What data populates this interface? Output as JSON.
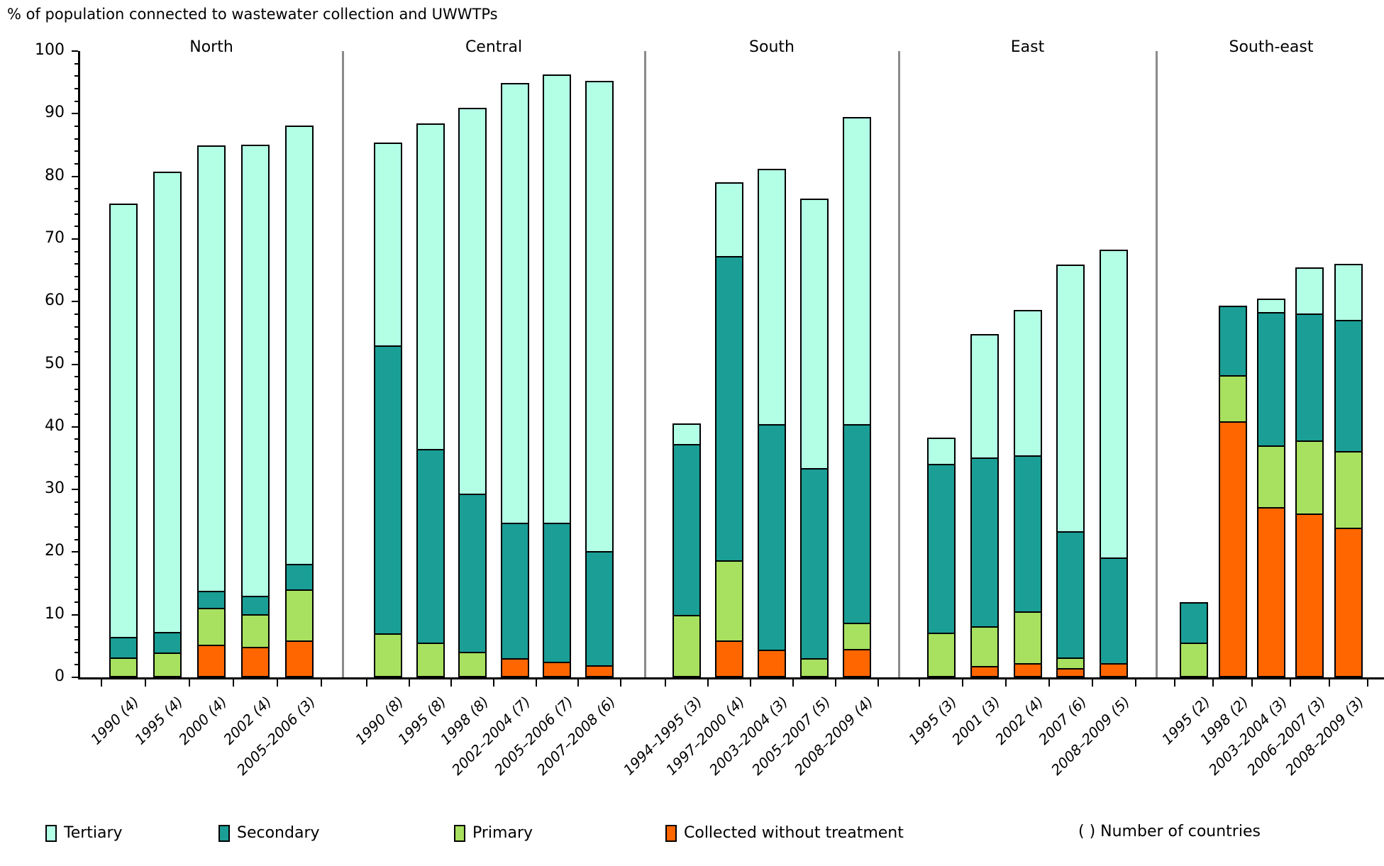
{
  "chart_data": {
    "type": "bar",
    "subtype": "stacked-vertical-grouped",
    "title": "% of population connected to wastewater collection and UWWTPs",
    "ylabel": "",
    "xlabel": "",
    "ylim": [
      0,
      100
    ],
    "y_major_step": 10,
    "y_minor_step": 2,
    "grid": false,
    "legend_position": "bottom",
    "note": "( ) Number of countries",
    "stack_order": [
      "collected",
      "primary",
      "secondary",
      "tertiary"
    ],
    "series_colors": {
      "tertiary": "#b2ffe6",
      "secondary": "#1a9e96",
      "primary": "#a8e05f",
      "collected": "#ff6600"
    },
    "legend": [
      {
        "key": "tertiary",
        "label": "Tertiary",
        "color": "#b2ffe6"
      },
      {
        "key": "secondary",
        "label": "Secondary",
        "color": "#1a9e96"
      },
      {
        "key": "primary",
        "label": "Primary",
        "color": "#a8e05f"
      },
      {
        "key": "collected",
        "label": "Collected without treatment",
        "color": "#ff6600"
      }
    ],
    "groups": [
      {
        "name": "North",
        "bars": [
          {
            "label": "1990 (4)",
            "collected": 0,
            "primary": 2.8,
            "secondary": 3.0,
            "tertiary": 69.8,
            "total": 75.6
          },
          {
            "label": "1995 (4)",
            "collected": 0,
            "primary": 3.5,
            "secondary": 3.2,
            "tertiary": 74.1,
            "total": 80.8
          },
          {
            "label": "2000 (4)",
            "collected": 4.8,
            "primary": 5.8,
            "secondary": 2.5,
            "tertiary": 71.8,
            "total": 84.9
          },
          {
            "label": "2002 (4)",
            "collected": 4.5,
            "primary": 5.0,
            "secondary": 2.8,
            "tertiary": 72.8,
            "total": 85.1
          },
          {
            "label": "2005–2006 (3)",
            "collected": 5.5,
            "primary": 8.0,
            "secondary": 3.9,
            "tertiary": 70.7,
            "total": 88.1
          }
        ]
      },
      {
        "name": "Central",
        "bars": [
          {
            "label": "1990 (8)",
            "collected": 0,
            "primary": 6.6,
            "secondary": 46.3,
            "tertiary": 32.5,
            "total": 85.4
          },
          {
            "label": "1995 (8)",
            "collected": 0,
            "primary": 5.1,
            "secondary": 31.1,
            "tertiary": 52.2,
            "total": 88.4
          },
          {
            "label": "1998 (8)",
            "collected": 0,
            "primary": 3.7,
            "secondary": 25.2,
            "tertiary": 62.0,
            "total": 90.9
          },
          {
            "label": "2002–2004 (7)",
            "collected": 2.6,
            "primary": 0,
            "secondary": 21.6,
            "tertiary": 70.7,
            "total": 94.9
          },
          {
            "label": "2005–2006 (7)",
            "collected": 2.1,
            "primary": 0,
            "secondary": 22.1,
            "tertiary": 72.1,
            "total": 96.3
          },
          {
            "label": "2007–2008 (6)",
            "collected": 1.5,
            "primary": 0,
            "secondary": 18.2,
            "tertiary": 75.6,
            "total": 95.3
          }
        ]
      },
      {
        "name": "South",
        "bars": [
          {
            "label": "1994–1995 (3)",
            "collected": 0,
            "primary": 9.7,
            "secondary": 27.7,
            "tertiary": 3.2,
            "total": 40.6
          },
          {
            "label": "1997–2000 (4)",
            "collected": 5.5,
            "primary": 12.8,
            "secondary": 49.0,
            "tertiary": 11.7,
            "total": 79.0
          },
          {
            "label": "2003–2004 (3)",
            "collected": 4.0,
            "primary": 0,
            "secondary": 36.2,
            "tertiary": 41.0,
            "total": 81.2
          },
          {
            "label": "2005–2007 (5)",
            "collected": 0,
            "primary": 2.6,
            "secondary": 30.5,
            "tertiary": 43.3,
            "total": 76.4
          },
          {
            "label": "2008–2009 (4)",
            "collected": 4.1,
            "primary": 4.1,
            "secondary": 31.8,
            "tertiary": 49.5,
            "total": 89.5
          }
        ]
      },
      {
        "name": "East",
        "bars": [
          {
            "label": "1995 (3)",
            "collected": 0,
            "primary": 6.8,
            "secondary": 27.4,
            "tertiary": 4.1,
            "total": 38.3
          },
          {
            "label": "2001 (3)",
            "collected": 1.4,
            "primary": 6.2,
            "secondary": 27.3,
            "tertiary": 19.9,
            "total": 54.8
          },
          {
            "label": "2002 (4)",
            "collected": 1.8,
            "primary": 8.3,
            "secondary": 25.1,
            "tertiary": 23.5,
            "total": 58.7
          },
          {
            "label": "2007 (6)",
            "collected": 1.0,
            "primary": 1.5,
            "secondary": 20.3,
            "tertiary": 43.1,
            "total": 65.9
          },
          {
            "label": "2008–2009 (5)",
            "collected": 1.8,
            "primary": 0,
            "secondary": 16.9,
            "tertiary": 49.6,
            "total": 68.3
          }
        ]
      },
      {
        "name": "South-east",
        "bars": [
          {
            "label": "1995 (2)",
            "collected": 0,
            "primary": 5.4,
            "secondary": 6.6,
            "tertiary": 0,
            "total": 12.0
          },
          {
            "label": "1998 (2)",
            "collected": 41.1,
            "primary": 7.2,
            "secondary": 11.0,
            "tertiary": 0,
            "total": 59.3
          },
          {
            "label": "2003–2004 (3)",
            "collected": 27.2,
            "primary": 9.9,
            "secondary": 21.4,
            "tertiary": 2.0,
            "total": 60.5
          },
          {
            "label": "2006–2007 (3)",
            "collected": 26.2,
            "primary": 11.6,
            "secondary": 20.4,
            "tertiary": 7.3,
            "total": 65.5
          },
          {
            "label": "2008–2009 (3)",
            "collected": 23.9,
            "primary": 12.2,
            "secondary": 21.1,
            "tertiary": 8.8,
            "total": 66.0
          }
        ]
      }
    ],
    "y_tick_labels": [
      "0",
      "10",
      "20",
      "30",
      "40",
      "50",
      "60",
      "70",
      "80",
      "90",
      "100"
    ]
  }
}
